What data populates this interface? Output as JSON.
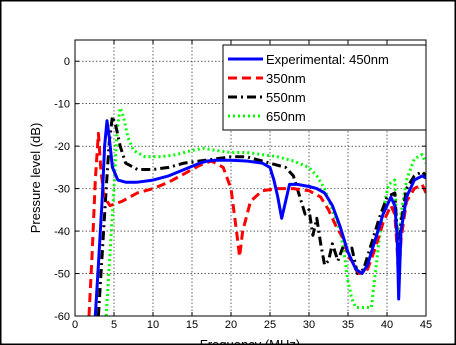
{
  "chart_data": {
    "type": "line",
    "title": "",
    "xlabel": "Frequency (MHz)",
    "ylabel": "Pressure level (dB)",
    "xlim": [
      0,
      45
    ],
    "ylim": [
      -60,
      5
    ],
    "xticks": [
      0,
      5,
      10,
      15,
      20,
      25,
      30,
      35,
      40,
      45
    ],
    "yticks": [
      0,
      -10,
      -20,
      -30,
      -40,
      -50,
      -60
    ],
    "grid": true,
    "legend_position": "top-right",
    "series": [
      {
        "name": "Experimental: 450nm",
        "color": "#0000ff",
        "dash": "solid",
        "points": [
          [
            2.6,
            -60
          ],
          [
            3.0,
            -48
          ],
          [
            3.5,
            -32
          ],
          [
            3.8,
            -20
          ],
          [
            4.1,
            -14
          ],
          [
            4.4,
            -18
          ],
          [
            4.8,
            -25
          ],
          [
            5.5,
            -28
          ],
          [
            6.5,
            -28.5
          ],
          [
            8,
            -28.5
          ],
          [
            10,
            -28
          ],
          [
            12,
            -27
          ],
          [
            14,
            -25.5
          ],
          [
            16,
            -24
          ],
          [
            17,
            -23.5
          ],
          [
            18,
            -23.3
          ],
          [
            20,
            -23.3
          ],
          [
            22,
            -23.5
          ],
          [
            24,
            -24
          ],
          [
            25,
            -25
          ],
          [
            25.5,
            -28
          ],
          [
            26,
            -32
          ],
          [
            26.5,
            -37
          ],
          [
            27,
            -33
          ],
          [
            27.5,
            -29
          ],
          [
            28.5,
            -29
          ],
          [
            30,
            -29.5
          ],
          [
            31,
            -30
          ],
          [
            32,
            -31
          ],
          [
            33,
            -34
          ],
          [
            34,
            -39
          ],
          [
            35,
            -45
          ],
          [
            36,
            -49
          ],
          [
            36.8,
            -50
          ],
          [
            37.5,
            -48
          ],
          [
            38.5,
            -42
          ],
          [
            39.5,
            -36
          ],
          [
            40.5,
            -32
          ],
          [
            41,
            -34
          ],
          [
            41.3,
            -41
          ],
          [
            41.5,
            -56
          ],
          [
            41.8,
            -40
          ],
          [
            42.5,
            -32
          ],
          [
            43.5,
            -28
          ],
          [
            44.5,
            -27
          ],
          [
            45,
            -27.5
          ]
        ]
      },
      {
        "name": "350nm",
        "color": "#ff0000",
        "dash": "dashed",
        "points": [
          [
            1.8,
            -60
          ],
          [
            2.2,
            -45
          ],
          [
            2.6,
            -28
          ],
          [
            3.0,
            -17
          ],
          [
            3.3,
            -25
          ],
          [
            3.7,
            -32
          ],
          [
            4.5,
            -34
          ],
          [
            6,
            -33
          ],
          [
            8,
            -31
          ],
          [
            10,
            -30
          ],
          [
            12,
            -28.5
          ],
          [
            14,
            -26.5
          ],
          [
            16,
            -24.5
          ],
          [
            17.5,
            -23.5
          ],
          [
            19,
            -25
          ],
          [
            20,
            -30
          ],
          [
            20.7,
            -40
          ],
          [
            21.1,
            -46
          ],
          [
            21.5,
            -40
          ],
          [
            22.5,
            -33
          ],
          [
            24,
            -30.5
          ],
          [
            26,
            -30
          ],
          [
            28,
            -30
          ],
          [
            30,
            -30.5
          ],
          [
            31.5,
            -32
          ],
          [
            32.5,
            -35
          ],
          [
            33.5,
            -39
          ],
          [
            34.5,
            -42
          ],
          [
            35,
            -46
          ],
          [
            35.5,
            -47
          ],
          [
            36,
            -49
          ],
          [
            36.5,
            -50
          ],
          [
            37.5,
            -49
          ],
          [
            38.5,
            -44
          ],
          [
            39.5,
            -38
          ],
          [
            40.5,
            -34
          ],
          [
            41,
            -36
          ],
          [
            41.3,
            -44
          ],
          [
            41.5,
            -52
          ],
          [
            41.8,
            -42
          ],
          [
            42.5,
            -33
          ],
          [
            43.5,
            -30
          ],
          [
            44.5,
            -29
          ],
          [
            45,
            -31
          ]
        ]
      },
      {
        "name": "550nm",
        "color": "#000000",
        "dash": "dashdot",
        "points": [
          [
            3.0,
            -60
          ],
          [
            3.5,
            -45
          ],
          [
            4.0,
            -30
          ],
          [
            4.4,
            -19
          ],
          [
            4.8,
            -13
          ],
          [
            5.2,
            -15
          ],
          [
            5.8,
            -20
          ],
          [
            6.5,
            -24
          ],
          [
            8,
            -25.5
          ],
          [
            10,
            -25.5
          ],
          [
            12,
            -25
          ],
          [
            14,
            -24
          ],
          [
            16,
            -23.5
          ],
          [
            18,
            -23
          ],
          [
            20,
            -22.5
          ],
          [
            22,
            -22.5
          ],
          [
            24,
            -23.5
          ],
          [
            26,
            -24.5
          ],
          [
            27,
            -25
          ],
          [
            28,
            -27
          ],
          [
            29,
            -33
          ],
          [
            29.5,
            -36
          ],
          [
            30,
            -35
          ],
          [
            30.5,
            -41
          ],
          [
            31,
            -37
          ],
          [
            31.5,
            -43
          ],
          [
            32,
            -48
          ],
          [
            32.5,
            -47
          ],
          [
            33,
            -43
          ],
          [
            33.7,
            -47
          ],
          [
            34.3,
            -44
          ],
          [
            35,
            -45
          ],
          [
            35.5,
            -44
          ],
          [
            36.2,
            -50
          ],
          [
            37,
            -49
          ],
          [
            38,
            -43
          ],
          [
            39,
            -37
          ],
          [
            40,
            -32
          ],
          [
            41,
            -31
          ],
          [
            41.3,
            -40
          ],
          [
            41.5,
            -47
          ],
          [
            41.8,
            -38
          ],
          [
            42.5,
            -30
          ],
          [
            43.5,
            -27
          ],
          [
            44.5,
            -26
          ],
          [
            45,
            -27
          ]
        ]
      },
      {
        "name": "650nm",
        "color": "#00ff00",
        "dash": "dotted",
        "points": [
          [
            4.0,
            -60
          ],
          [
            4.5,
            -45
          ],
          [
            5.0,
            -30
          ],
          [
            5.4,
            -16
          ],
          [
            5.8,
            -11
          ],
          [
            6.2,
            -13
          ],
          [
            6.8,
            -18
          ],
          [
            7.5,
            -21
          ],
          [
            9,
            -22.5
          ],
          [
            11,
            -22.5
          ],
          [
            13,
            -22
          ],
          [
            15,
            -21
          ],
          [
            16.5,
            -20.5
          ],
          [
            18,
            -21
          ],
          [
            20,
            -21.5
          ],
          [
            22,
            -21.5
          ],
          [
            24,
            -22
          ],
          [
            26,
            -22.5
          ],
          [
            28,
            -23.5
          ],
          [
            30,
            -25
          ],
          [
            31,
            -27
          ],
          [
            32,
            -30
          ],
          [
            33,
            -35
          ],
          [
            34,
            -40
          ],
          [
            34.5,
            -45
          ],
          [
            35,
            -52
          ],
          [
            35.5,
            -56
          ],
          [
            36,
            -58
          ],
          [
            37,
            -58
          ],
          [
            38,
            -58
          ],
          [
            38.5,
            -50
          ],
          [
            39,
            -42
          ],
          [
            39.5,
            -35
          ],
          [
            40.2,
            -29
          ],
          [
            41,
            -28
          ],
          [
            41.3,
            -40
          ],
          [
            41.5,
            -46
          ],
          [
            41.8,
            -36
          ],
          [
            42.5,
            -28
          ],
          [
            43.5,
            -23
          ],
          [
            44.5,
            -22
          ],
          [
            45,
            -24
          ]
        ]
      }
    ]
  }
}
